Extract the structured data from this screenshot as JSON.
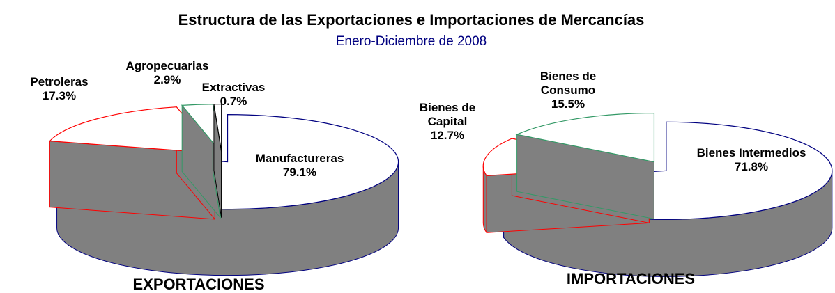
{
  "title": "Estructura de las Exportaciones e Importaciones de Mercancías",
  "subtitle": "Enero-Diciembre de 2008",
  "chart_data": [
    {
      "type": "pie3d",
      "title": "EXPORTACIONES",
      "categories": [
        "Manufactureras",
        "Petroleras",
        "Agropecuarias",
        "Extractivas"
      ],
      "values": [
        79.1,
        17.3,
        2.9,
        0.7
      ],
      "value_labels": [
        "79.1%",
        "17.3%",
        "2.9%",
        "0.7%"
      ],
      "colors": [
        "#000080",
        "#ff0000",
        "#339966",
        "#000000"
      ],
      "side_color": "#808080"
    },
    {
      "type": "pie3d",
      "title": "IMPORTACIONES",
      "categories": [
        "Bienes Intermedios",
        "Bienes de Capital",
        "Bienes de Consumo"
      ],
      "values": [
        71.8,
        12.7,
        15.5
      ],
      "value_labels": [
        "71.8%",
        "12.7%",
        "15.5%"
      ],
      "colors": [
        "#000080",
        "#ff0000",
        "#339966"
      ],
      "side_color": "#808080"
    }
  ]
}
